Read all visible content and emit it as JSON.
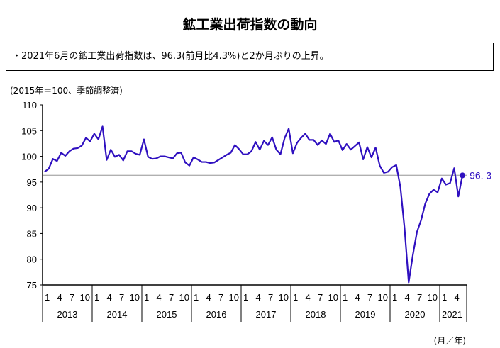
{
  "title": "鉱工業出荷指数の動向",
  "summary": "・2021年6月の鉱工業出荷指数は、96.3(前月比4.3%)と2か月ぶりの上昇。",
  "chart_data": {
    "type": "line",
    "title": "鉱工業出荷指数の動向",
    "ylabel": "(2015年＝100、季節調整済)",
    "xlabel": "(月／年)",
    "ylim": [
      75,
      110
    ],
    "yticks": [
      "75",
      "80",
      "85",
      "90",
      "95",
      "100",
      "105",
      "110"
    ],
    "month_tick_labels": [
      "1",
      "4",
      "7",
      "10"
    ],
    "years": [
      "2013",
      "2014",
      "2015",
      "2016",
      "2017",
      "2018",
      "2019",
      "2020",
      "2021"
    ],
    "start": "2013-01",
    "reference_line": 96.3,
    "last_label": "96. 3",
    "line_color": "#2f10c0",
    "series": [
      {
        "name": "鉱工業出荷指数",
        "values": [
          97.0,
          97.6,
          99.5,
          99.1,
          100.7,
          100.1,
          101.0,
          101.5,
          101.6,
          102.1,
          103.6,
          102.9,
          104.4,
          103.3,
          105.8,
          99.3,
          101.3,
          99.9,
          100.3,
          99.2,
          101.0,
          101.0,
          100.5,
          100.3,
          103.3,
          99.9,
          99.5,
          99.6,
          100.0,
          100.0,
          99.8,
          99.6,
          100.6,
          100.7,
          98.8,
          98.2,
          99.8,
          99.4,
          98.9,
          98.9,
          98.7,
          98.8,
          99.3,
          99.8,
          100.3,
          100.7,
          102.2,
          101.4,
          100.4,
          100.4,
          101.0,
          102.8,
          101.3,
          103.0,
          102.2,
          103.7,
          101.3,
          100.4,
          103.5,
          105.4,
          100.6,
          102.6,
          103.6,
          104.4,
          103.2,
          103.2,
          102.2,
          103.1,
          102.4,
          104.4,
          102.8,
          103.1,
          101.2,
          102.4,
          101.3,
          102.0,
          102.7,
          99.4,
          101.8,
          99.8,
          101.7,
          98.2,
          96.8,
          97.0,
          97.9,
          98.3,
          94.0,
          86.0,
          75.5,
          80.8,
          85.3,
          87.6,
          90.8,
          92.7,
          93.5,
          93.0,
          95.7,
          94.5,
          94.8,
          97.7,
          92.2,
          96.3
        ]
      }
    ]
  }
}
